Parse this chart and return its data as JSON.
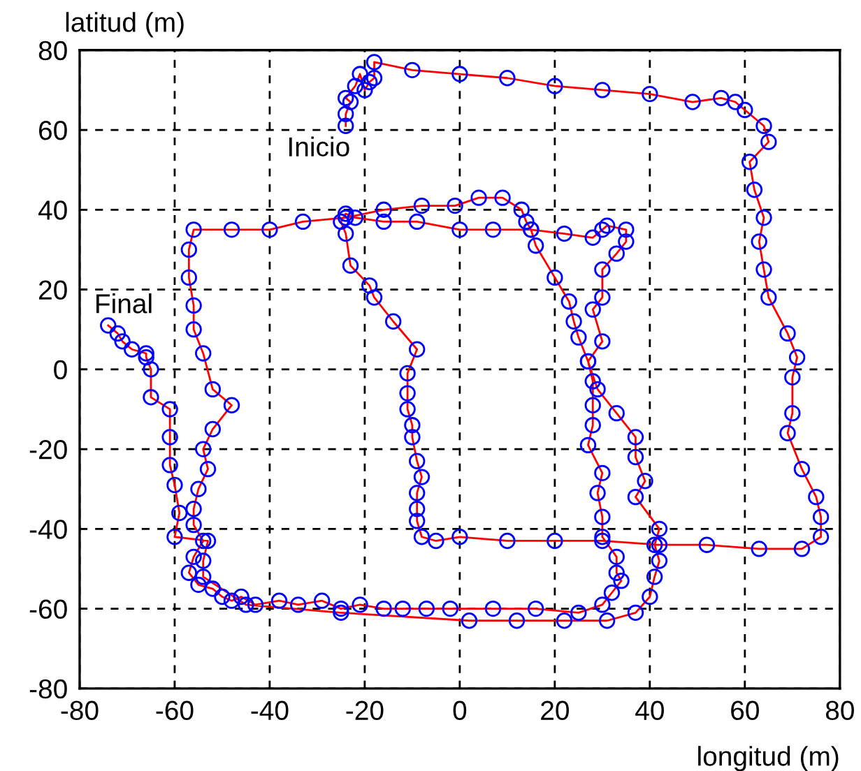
{
  "chart_data": {
    "type": "line",
    "xlabel": "longitud (m)",
    "ylabel": "latitud (m)",
    "xlim": [
      -80,
      80
    ],
    "xticks": [
      -80,
      -60,
      -40,
      -20,
      0,
      20,
      40,
      60,
      80
    ],
    "ylim": [
      -80,
      80
    ],
    "yticks": [
      -80,
      -60,
      -40,
      -20,
      0,
      20,
      40,
      60,
      80
    ],
    "grid": true,
    "annotations": [
      {
        "text": "Inicio",
        "x": -24,
        "y": 61
      },
      {
        "text": "Final",
        "x": -74,
        "y": 11
      }
    ],
    "series": [
      {
        "type": "line",
        "color": "#ff0000",
        "marker": "none",
        "line_style": "solid",
        "x": [
          -24,
          -24,
          -23,
          -24,
          -22,
          -21,
          -20,
          -19,
          -18,
          -18,
          -10,
          0,
          10,
          20,
          30,
          40,
          49,
          55,
          58,
          60,
          64,
          65,
          61,
          62,
          64,
          63,
          64,
          65,
          69,
          71,
          70,
          70,
          69,
          72,
          75,
          76,
          76,
          72,
          63,
          52,
          42,
          30,
          20,
          10,
          0,
          -5,
          -8,
          -9,
          -9,
          -9,
          -8,
          -9,
          -10,
          -10,
          -11,
          -11,
          -11,
          -9,
          -14,
          -18,
          -19,
          -23,
          -24,
          -25,
          -24,
          -22,
          -16,
          -9,
          0,
          7,
          15,
          22,
          28,
          30,
          31,
          35,
          35,
          33,
          30,
          30,
          28,
          30,
          27,
          28,
          28,
          28,
          27,
          30,
          29,
          30,
          30,
          33,
          33,
          34,
          32,
          30,
          25,
          16,
          7,
          -2,
          -7,
          -12,
          -16,
          -21,
          -25,
          -29,
          -34,
          -38,
          -43,
          -46,
          -48,
          -50,
          -52,
          -55,
          -57,
          -56,
          -54,
          -56,
          -56,
          -55,
          -53,
          -54,
          -52,
          -48,
          -52,
          -54,
          -56,
          -56,
          -57,
          -57,
          -56,
          -48,
          -40,
          -33,
          -24,
          -16,
          -8,
          -1,
          4,
          9,
          13,
          14,
          15,
          16,
          20,
          23,
          24,
          25,
          27,
          29,
          33,
          37,
          37,
          39,
          37,
          42,
          41,
          42,
          41,
          40,
          37,
          31,
          22,
          12,
          2,
          -25,
          -45,
          -54,
          -54,
          -53,
          -60,
          -59,
          -60,
          -61,
          -61,
          -61,
          -65,
          -65,
          -66,
          -66,
          -69,
          -71,
          -72,
          -74
        ],
        "values": [
          61,
          64,
          67,
          68,
          71,
          74,
          70,
          72,
          73,
          77,
          75,
          74,
          73,
          71,
          70,
          69,
          67,
          68,
          67,
          65,
          61,
          57,
          52,
          45,
          38,
          32,
          25,
          18,
          9,
          3,
          -2,
          -11,
          -16,
          -25,
          -32,
          -37,
          -42,
          -45,
          -45,
          -44,
          -44,
          -43,
          -43,
          -43,
          -42,
          -43,
          -42,
          -38,
          -35,
          -31,
          -27,
          -23,
          -17,
          -14,
          -10,
          -6,
          -1,
          5,
          12,
          18,
          21,
          26,
          34,
          37,
          39,
          38,
          37,
          37,
          35,
          35,
          35,
          34,
          33,
          35,
          36,
          35,
          32,
          29,
          25,
          18,
          15,
          7,
          2,
          -3,
          -9,
          -14,
          -19,
          -26,
          -31,
          -37,
          -42,
          -47,
          -51,
          -53,
          -56,
          -59,
          -61,
          -60,
          -60,
          -60,
          -60,
          -60,
          -60,
          -59,
          -60,
          -58,
          -59,
          -58,
          -59,
          -57,
          -58,
          -57,
          -55,
          -54,
          -51,
          -47,
          -43,
          -39,
          -35,
          -30,
          -25,
          -20,
          -15,
          -9,
          -5,
          4,
          10,
          16,
          23,
          30,
          35,
          35,
          35,
          37,
          38,
          40,
          41,
          41,
          43,
          43,
          40,
          37,
          35,
          31,
          23,
          17,
          12,
          8,
          2,
          -5,
          -11,
          -17,
          -22,
          -28,
          -32,
          -40,
          -44,
          -48,
          -52,
          -57,
          -61,
          -63,
          -63,
          -63,
          -63,
          -61,
          -59,
          -52,
          -48,
          -43,
          -42,
          -36,
          -29,
          -24,
          -17,
          -10,
          -7,
          0,
          3,
          4,
          5,
          7,
          9,
          11
        ]
      },
      {
        "type": "scatter",
        "color": "#0000ff",
        "marker": "circle",
        "x": [
          -24,
          -24,
          -23,
          -24,
          -22,
          -21,
          -20,
          -19,
          -18,
          -18,
          -10,
          0,
          10,
          20,
          30,
          40,
          49,
          55,
          58,
          60,
          64,
          65,
          61,
          62,
          64,
          63,
          64,
          65,
          69,
          71,
          70,
          70,
          69,
          72,
          75,
          76,
          76,
          72,
          63,
          52,
          42,
          30,
          20,
          10,
          0,
          -5,
          -8,
          -9,
          -9,
          -9,
          -8,
          -9,
          -10,
          -10,
          -11,
          -11,
          -11,
          -9,
          -14,
          -18,
          -19,
          -23,
          -24,
          -25,
          -24,
          -22,
          -16,
          -9,
          0,
          7,
          15,
          22,
          28,
          30,
          31,
          35,
          35,
          33,
          30,
          30,
          28,
          30,
          27,
          28,
          28,
          28,
          27,
          30,
          29,
          30,
          30,
          33,
          33,
          34,
          32,
          30,
          25,
          16,
          7,
          -2,
          -7,
          -12,
          -16,
          -21,
          -25,
          -29,
          -34,
          -38,
          -43,
          -46,
          -48,
          -50,
          -52,
          -55,
          -57,
          -56,
          -54,
          -56,
          -56,
          -55,
          -53,
          -54,
          -52,
          -48,
          -52,
          -54,
          -56,
          -56,
          -57,
          -57,
          -56,
          -48,
          -40,
          -33,
          -24,
          -16,
          -8,
          -1,
          4,
          9,
          13,
          14,
          15,
          16,
          20,
          23,
          24,
          25,
          27,
          29,
          33,
          37,
          37,
          39,
          37,
          42,
          41,
          42,
          41,
          40,
          37,
          31,
          22,
          12,
          2,
          -25,
          -45,
          -54,
          -54,
          -53,
          -60,
          -59,
          -60,
          -61,
          -61,
          -61,
          -65,
          -65,
          -66,
          -66,
          -69,
          -71,
          -72,
          -74
        ],
        "values": [
          61,
          64,
          67,
          68,
          71,
          74,
          70,
          72,
          73,
          77,
          75,
          74,
          73,
          71,
          70,
          69,
          67,
          68,
          67,
          65,
          61,
          57,
          52,
          45,
          38,
          32,
          25,
          18,
          9,
          3,
          -2,
          -11,
          -16,
          -25,
          -32,
          -37,
          -42,
          -45,
          -45,
          -44,
          -44,
          -43,
          -43,
          -43,
          -42,
          -43,
          -42,
          -38,
          -35,
          -31,
          -27,
          -23,
          -17,
          -14,
          -10,
          -6,
          -1,
          5,
          12,
          18,
          21,
          26,
          34,
          37,
          39,
          38,
          37,
          37,
          35,
          35,
          35,
          34,
          33,
          35,
          36,
          35,
          32,
          29,
          25,
          18,
          15,
          7,
          2,
          -3,
          -9,
          -14,
          -19,
          -26,
          -31,
          -37,
          -42,
          -47,
          -51,
          -53,
          -56,
          -59,
          -61,
          -60,
          -60,
          -60,
          -60,
          -60,
          -60,
          -59,
          -60,
          -58,
          -59,
          -58,
          -59,
          -57,
          -58,
          -57,
          -55,
          -54,
          -51,
          -47,
          -43,
          -39,
          -35,
          -30,
          -25,
          -20,
          -15,
          -9,
          -5,
          4,
          10,
          16,
          23,
          30,
          35,
          35,
          35,
          37,
          38,
          40,
          41,
          41,
          43,
          43,
          40,
          37,
          35,
          31,
          23,
          17,
          12,
          8,
          2,
          -5,
          -11,
          -17,
          -22,
          -28,
          -32,
          -40,
          -44,
          -48,
          -52,
          -57,
          -61,
          -63,
          -63,
          -63,
          -63,
          -61,
          -59,
          -52,
          -48,
          -43,
          -42,
          -36,
          -29,
          -24,
          -17,
          -10,
          -7,
          0,
          3,
          4,
          5,
          7,
          9,
          11
        ]
      }
    ]
  }
}
